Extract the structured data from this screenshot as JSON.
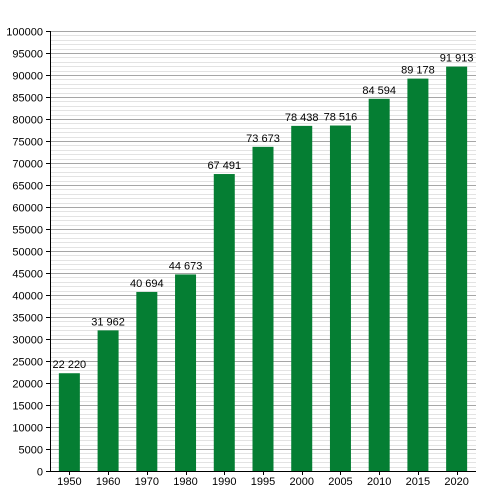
{
  "chart_data": {
    "type": "bar",
    "title": "",
    "xlabel": "",
    "ylabel": "",
    "categories": [
      "1950",
      "1960",
      "1970",
      "1980",
      "1990",
      "1995",
      "2000",
      "2005",
      "2010",
      "2015",
      "2020"
    ],
    "values": [
      22220,
      31962,
      40694,
      44673,
      67491,
      73673,
      78438,
      78516,
      84594,
      89178,
      91913
    ],
    "value_labels": [
      "22 220",
      "31 962",
      "40 694",
      "44 673",
      "67 491",
      "73 673",
      "78 438",
      "78 516",
      "84 594",
      "89 178",
      "91 913"
    ],
    "y_ticks": [
      0,
      5000,
      10000,
      15000,
      20000,
      25000,
      30000,
      35000,
      40000,
      45000,
      50000,
      55000,
      60000,
      65000,
      70000,
      75000,
      80000,
      85000,
      90000,
      95000,
      100000
    ],
    "ylim": [
      0,
      100000
    ],
    "minor_gridline_step": 1000,
    "grid": true,
    "legend": "none",
    "colors": {
      "bar": "#057e33",
      "major_grid": "#a6a6a6",
      "minor_grid": "#e3e3e3",
      "axis": "#000000"
    }
  }
}
